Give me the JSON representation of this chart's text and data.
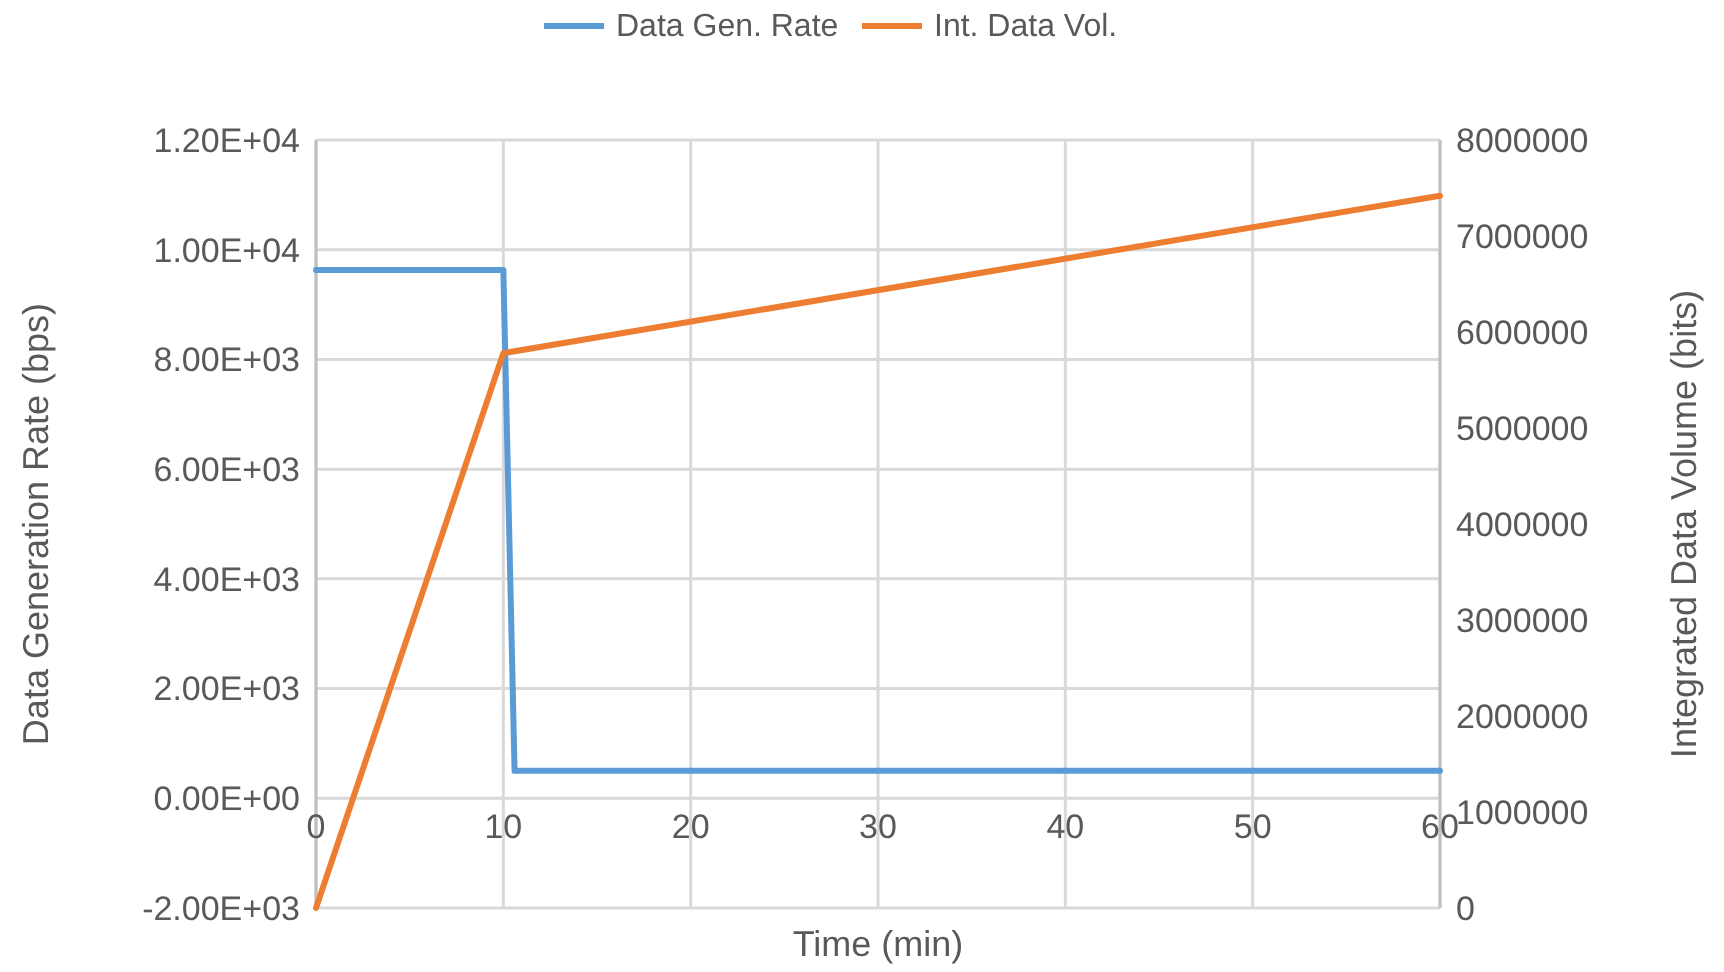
{
  "chart_data": {
    "type": "line",
    "xlabel": "Time (min)",
    "ylabel": "Data Generation Rate (bps)",
    "y2label": "Integrated Data Volume (bits)",
    "xlim": [
      0,
      60
    ],
    "xticks": [
      0,
      10,
      20,
      30,
      40,
      50,
      60
    ],
    "ylim": [
      -2000,
      12000
    ],
    "yticks": [
      {
        "value": -2000,
        "label": "-2.00E+03"
      },
      {
        "value": 0,
        "label": "0.00E+00"
      },
      {
        "value": 2000,
        "label": "2.00E+03"
      },
      {
        "value": 4000,
        "label": "4.00E+03"
      },
      {
        "value": 6000,
        "label": "6.00E+03"
      },
      {
        "value": 8000,
        "label": "8.00E+03"
      },
      {
        "value": 10000,
        "label": "1.00E+04"
      },
      {
        "value": 12000,
        "label": "1.20E+04"
      }
    ],
    "y2lim": [
      0,
      8000000
    ],
    "y2ticks": [
      0,
      1000000,
      2000000,
      3000000,
      4000000,
      5000000,
      6000000,
      7000000,
      8000000
    ],
    "grid": true,
    "legend": "top",
    "marker": "none",
    "line_style": "solid",
    "series": [
      {
        "name": "Data Gen. Rate",
        "color": "#5b9bd5",
        "x": [
          0,
          10,
          10.6,
          60
        ],
        "values": [
          9630,
          9630,
          500,
          500
        ]
      },
      {
        "name": "Int. Data Vol.",
        "color": "#ed7d31",
        "axis": "y2",
        "x": [
          0,
          10,
          60
        ],
        "values": [
          0,
          5780000,
          7420000
        ]
      }
    ]
  }
}
